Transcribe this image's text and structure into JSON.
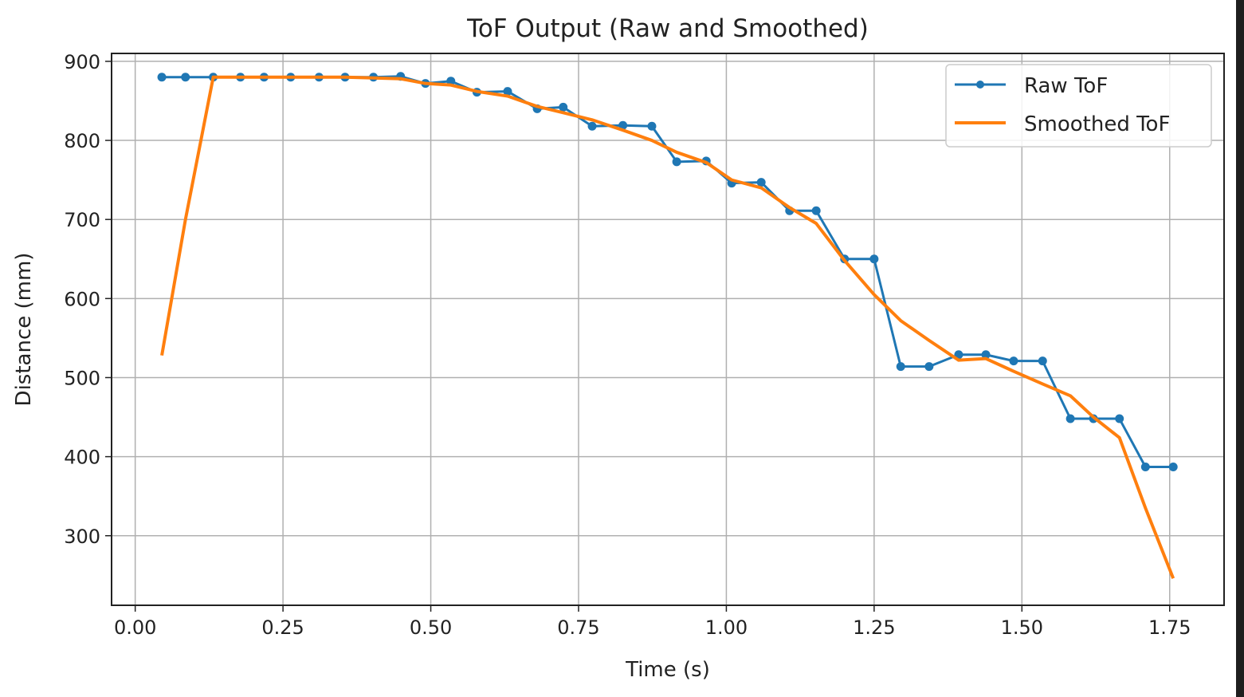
{
  "chart_data": {
    "type": "line",
    "title": "ToF Output (Raw and Smoothed)",
    "xlabel": "Time (s)",
    "ylabel": "Distance (mm)",
    "xlim": [
      -0.04,
      1.842
    ],
    "ylim": [
      212,
      910
    ],
    "xticks": [
      0.0,
      0.25,
      0.5,
      0.75,
      1.0,
      1.25,
      1.5,
      1.75
    ],
    "xtick_labels": [
      "0.00",
      "0.25",
      "0.50",
      "0.75",
      "1.00",
      "1.25",
      "1.50",
      "1.75"
    ],
    "yticks": [
      300,
      400,
      500,
      600,
      700,
      800,
      900
    ],
    "ytick_labels": [
      "300",
      "400",
      "500",
      "600",
      "700",
      "800",
      "900"
    ],
    "grid": true,
    "legend_position": "top-right",
    "x": [
      0.045,
      0.085,
      0.132,
      0.178,
      0.218,
      0.263,
      0.311,
      0.355,
      0.403,
      0.449,
      0.491,
      0.534,
      0.578,
      0.63,
      0.68,
      0.724,
      0.773,
      0.825,
      0.874,
      0.916,
      0.966,
      1.009,
      1.059,
      1.107,
      1.152,
      1.2,
      1.25,
      1.295,
      1.343,
      1.393,
      1.439,
      1.486,
      1.535,
      1.582,
      1.621,
      1.665,
      1.709,
      1.756
    ],
    "series": [
      {
        "name": "Raw ToF",
        "color": "#1f77b4",
        "marker": "dot",
        "values": [
          880,
          880,
          880,
          880,
          880,
          880,
          880,
          880,
          880,
          881,
          872,
          875,
          861,
          862,
          840,
          842,
          818,
          819,
          818,
          773,
          774,
          746,
          747,
          711,
          711,
          650,
          650,
          514,
          514,
          529,
          529,
          521,
          521,
          448,
          448,
          448,
          387,
          387
        ]
      },
      {
        "name": "Smoothed ToF",
        "color": "#ff7f0e",
        "marker": "none",
        "values": [
          528,
          700,
          880,
          880,
          880,
          880,
          880,
          880,
          879,
          878,
          872,
          870,
          862,
          856,
          843,
          835,
          826,
          813,
          800,
          785,
          772,
          750,
          740,
          715,
          695,
          648,
          605,
          572,
          547,
          522,
          524,
          508,
          492,
          477,
          450,
          424,
          335,
          246
        ]
      }
    ]
  }
}
